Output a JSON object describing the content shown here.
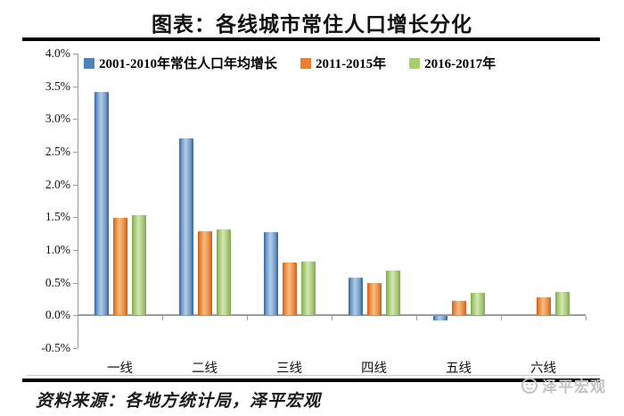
{
  "title": "图表：各线城市常住人口增长分化",
  "source_note": "资料来源：各地方统计局，泽平宏观",
  "watermark_text": "泽平宏观",
  "colors": {
    "series_blue": "#4f81bd",
    "series_orange": "#ed7d31",
    "series_green": "#a8ce6e",
    "axis_gray": "#9b9b9b",
    "rule_black": "#000000",
    "watermark_gray": "#c3c3c3"
  },
  "chart_data": {
    "type": "bar",
    "title": "图表：各线城市常住人口增长分化",
    "categories": [
      "一线",
      "二线",
      "三线",
      "四线",
      "五线",
      "六线"
    ],
    "series": [
      {
        "name": "2001-2010年常住人口年均增长",
        "color": "#4f81bd",
        "values": [
          3.41,
          2.71,
          1.27,
          0.58,
          -0.07,
          0.0
        ]
      },
      {
        "name": "2011-2015年",
        "color": "#ed7d31",
        "values": [
          1.49,
          1.28,
          0.81,
          0.5,
          0.22,
          0.28
        ]
      },
      {
        "name": "2016-2017年",
        "color": "#a8ce6e",
        "values": [
          1.53,
          1.32,
          0.82,
          0.68,
          0.34,
          0.36
        ]
      }
    ],
    "xlabel": "",
    "ylabel": "",
    "ylim": [
      -0.5,
      4.0
    ],
    "ytick_step": 0.5,
    "ytick_labels": [
      "4.0%",
      "3.5%",
      "3.0%",
      "2.5%",
      "2.0%",
      "1.5%",
      "1.0%",
      "0.5%",
      "0.0%",
      "-0.5%"
    ],
    "legend_position": "top-left",
    "grid": false
  }
}
